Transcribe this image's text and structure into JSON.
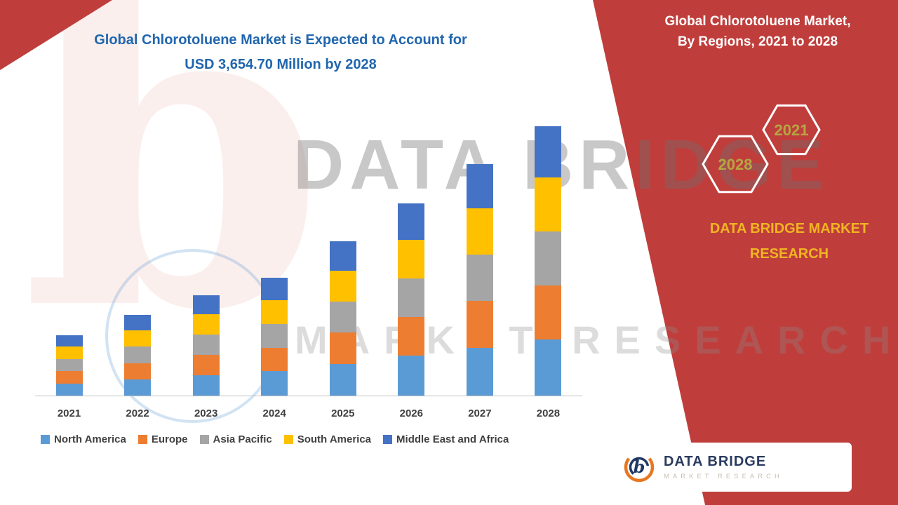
{
  "title": {
    "line1": "Global Chlorotoluene Market is Expected to Account for",
    "line2": "USD 3,654.70 Million by 2028"
  },
  "panel": {
    "heading_line1": "Global Chlorotoluene Market,",
    "heading_line2": "By Regions, 2021 to 2028",
    "hex_year_top": "2021",
    "hex_year_bottom": "2028",
    "brand_line1": "DATA BRIDGE MARKET",
    "brand_line2": "RESEARCH",
    "panel_color": "#BF3E3C",
    "brand_color": "#F0B422"
  },
  "watermark": {
    "line1": "DATA BRIDGE",
    "line2": "MARKET RESEARCH"
  },
  "logo": {
    "name": "DATA BRIDGE",
    "sub": "MARKET RESEARCH"
  },
  "chart_data": {
    "type": "bar",
    "stacked": true,
    "title": "Global Chlorotoluene Market is Expected to Account for USD 3,654.70 Million by 2028",
    "categories": [
      "2021",
      "2022",
      "2023",
      "2024",
      "2025",
      "2026",
      "2027",
      "2028"
    ],
    "series": [
      {
        "name": "North America",
        "color": "#5B9BD5",
        "values": [
          174,
          231,
          288,
          338,
          441,
          548,
          659,
          767.0
        ]
      },
      {
        "name": "Europe",
        "color": "#ED7D31",
        "values": [
          166,
          220,
          274,
          322,
          420,
          522,
          628,
          731.0
        ]
      },
      {
        "name": "Asia Pacific",
        "color": "#A5A5A5",
        "values": [
          166,
          220,
          274,
          322,
          420,
          522,
          628,
          731.0
        ]
      },
      {
        "name": "South America",
        "color": "#FFC000",
        "values": [
          166,
          220,
          274,
          322,
          420,
          522,
          628,
          731.0
        ]
      },
      {
        "name": "Middle East and Africa",
        "color": "#4472C4",
        "values": [
          158,
          209,
          260,
          306,
          399,
          496,
          597,
          694.7
        ]
      }
    ],
    "totals": [
      830,
      1100,
      1370,
      1610,
      2100,
      2610,
      3140,
      3654.7
    ],
    "unit_note": "USD 3,654.70 Million by 2028",
    "grid": false,
    "y_axis_visible": false,
    "legend_position": "bottom"
  }
}
